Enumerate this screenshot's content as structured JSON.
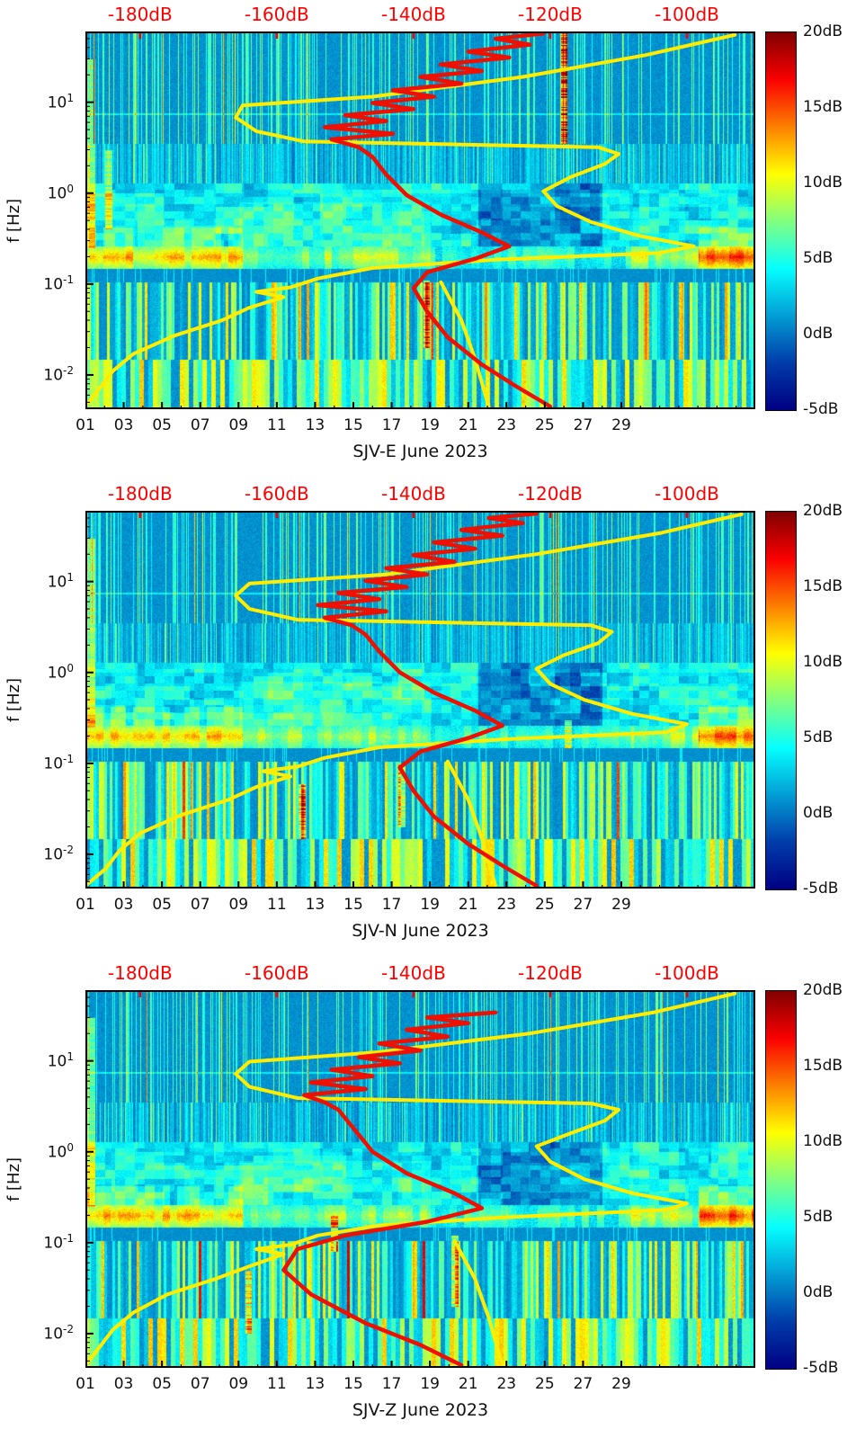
{
  "colors": {
    "top_axis_red": "#ff0000",
    "yellow_curve": "#ffec00",
    "red_curve": "#ee1000",
    "frame": "#000000",
    "background": "#ffffff"
  },
  "axes": {
    "y_label": "f [Hz]",
    "db_min": -188,
    "db_max": -90,
    "f_min": 0.0042,
    "f_max": 60,
    "day_min": 1,
    "day_max": 36,
    "top_tick_values": [
      -180,
      -160,
      -140,
      -120,
      -100
    ],
    "top_tick_labels": [
      "-180dB",
      "-160dB",
      "-140dB",
      "-120dB",
      "-100dB"
    ],
    "day_tick_values": [
      1,
      3,
      5,
      7,
      9,
      11,
      13,
      15,
      17,
      19,
      21,
      23,
      25,
      27,
      29
    ],
    "day_tick_labels": [
      "01",
      "03",
      "05",
      "07",
      "09",
      "11",
      "13",
      "15",
      "17",
      "19",
      "21",
      "23",
      "25",
      "27",
      "29"
    ],
    "y_tick_exponents": [
      1,
      0,
      -1,
      -2
    ],
    "colorbar": {
      "min": -5,
      "max": 20,
      "tick_values": [
        20,
        15,
        10,
        5,
        0,
        -5
      ],
      "tick_labels": [
        "20dB",
        "15dB",
        "10dB",
        "5dB",
        "0dB",
        "-5dB"
      ]
    }
  },
  "chart_data": [
    {
      "type": "heatmap",
      "station": "SJV-E",
      "xlabel": "SJV-E June 2023",
      "ylabel": "f [Hz]",
      "value_unit": "dB",
      "seed": 3,
      "hot_columns": [
        {
          "day": 26.0,
          "fmin": 3.5,
          "fmax": 60,
          "add": 13
        },
        {
          "day": 18.8,
          "fmin": 0.02,
          "fmax": 0.11,
          "add": 8
        },
        {
          "day": 2.2,
          "fmin": 0.4,
          "fmax": 3,
          "add": 5
        }
      ],
      "yellow_curve": [
        [
          -188,
          0.0045
        ],
        [
          -186,
          0.007
        ],
        [
          -184,
          0.011
        ],
        [
          -181,
          0.017
        ],
        [
          -175,
          0.027
        ],
        [
          -168,
          0.04
        ],
        [
          -164,
          0.055
        ],
        [
          -159,
          0.072
        ],
        [
          -163,
          0.082
        ],
        [
          -158,
          0.092
        ],
        [
          -154,
          0.115
        ],
        [
          -146,
          0.15
        ],
        [
          -128,
          0.185
        ],
        [
          -104,
          0.22
        ],
        [
          -99,
          0.26
        ],
        [
          -107,
          0.34
        ],
        [
          -114,
          0.48
        ],
        [
          -119,
          0.72
        ],
        [
          -121,
          1.05
        ],
        [
          -117,
          1.5
        ],
        [
          -112,
          2.1
        ],
        [
          -110,
          2.7
        ],
        [
          -113,
          3.2
        ],
        [
          -156,
          3.7
        ],
        [
          -163,
          4.8
        ],
        [
          -166,
          6.8
        ],
        [
          -165,
          9.2
        ],
        [
          -146,
          11.5
        ],
        [
          -124,
          19
        ],
        [
          -106,
          33
        ],
        [
          -93,
          55
        ]
      ],
      "yellow_curve_aux": [
        [
          -136,
          0.105
        ],
        [
          -133,
          0.04
        ],
        [
          -131,
          0.015
        ],
        [
          -129,
          0.0045
        ]
      ],
      "red_curve": [
        [
          -120,
          0.0045
        ],
        [
          -125,
          0.0075
        ],
        [
          -130,
          0.013
        ],
        [
          -135,
          0.026
        ],
        [
          -138,
          0.05
        ],
        [
          -140,
          0.09
        ],
        [
          -138,
          0.135
        ],
        [
          -131,
          0.19
        ],
        [
          -126,
          0.26
        ],
        [
          -130,
          0.37
        ],
        [
          -136,
          0.58
        ],
        [
          -141,
          0.95
        ],
        [
          -144,
          1.6
        ],
        [
          -146,
          2.5
        ],
        [
          -148,
          3.2
        ],
        [
          -152,
          3.9
        ],
        [
          -143,
          4.5
        ],
        [
          -153,
          5.3
        ],
        [
          -144,
          6.2
        ],
        [
          -150,
          7.2
        ],
        [
          -140,
          8.4
        ],
        [
          -146,
          9.8
        ],
        [
          -137,
          11.5
        ],
        [
          -143,
          13.5
        ],
        [
          -133,
          16
        ],
        [
          -139,
          19
        ],
        [
          -130,
          22
        ],
        [
          -136,
          26
        ],
        [
          -126,
          31
        ],
        [
          -132,
          36
        ],
        [
          -123,
          43
        ],
        [
          -128,
          50
        ],
        [
          -121,
          57
        ]
      ]
    },
    {
      "type": "heatmap",
      "station": "SJV-N",
      "xlabel": "SJV-N June 2023",
      "ylabel": "f [Hz]",
      "value_unit": "dB",
      "seed": 7,
      "hot_columns": [
        {
          "day": 12.3,
          "fmin": 0.015,
          "fmax": 0.06,
          "add": 9
        },
        {
          "day": 26.2,
          "fmin": 0.15,
          "fmax": 0.3,
          "add": 6
        },
        {
          "day": 17.5,
          "fmin": 0.02,
          "fmax": 0.1,
          "add": 7
        }
      ],
      "yellow_curve": [
        [
          -188,
          0.0045
        ],
        [
          -185,
          0.007
        ],
        [
          -183,
          0.011
        ],
        [
          -180,
          0.017
        ],
        [
          -174,
          0.027
        ],
        [
          -167,
          0.04
        ],
        [
          -163,
          0.055
        ],
        [
          -158,
          0.072
        ],
        [
          -162,
          0.082
        ],
        [
          -157,
          0.092
        ],
        [
          -153,
          0.115
        ],
        [
          -145,
          0.15
        ],
        [
          -126,
          0.185
        ],
        [
          -103,
          0.22
        ],
        [
          -100,
          0.27
        ],
        [
          -108,
          0.35
        ],
        [
          -115,
          0.5
        ],
        [
          -120,
          0.75
        ],
        [
          -122,
          1.1
        ],
        [
          -118,
          1.55
        ],
        [
          -113,
          2.1
        ],
        [
          -111,
          2.8
        ],
        [
          -114,
          3.3
        ],
        [
          -157,
          3.8
        ],
        [
          -164,
          5.0
        ],
        [
          -166,
          7.0
        ],
        [
          -164,
          9.5
        ],
        [
          -144,
          12
        ],
        [
          -122,
          20
        ],
        [
          -104,
          34
        ],
        [
          -92,
          55
        ]
      ],
      "yellow_curve_aux": [
        [
          -135,
          0.105
        ],
        [
          -132,
          0.04
        ],
        [
          -130,
          0.015
        ],
        [
          -128,
          0.0045
        ]
      ],
      "red_curve": [
        [
          -122,
          0.0045
        ],
        [
          -127,
          0.0075
        ],
        [
          -132,
          0.013
        ],
        [
          -137,
          0.026
        ],
        [
          -140,
          0.05
        ],
        [
          -142,
          0.09
        ],
        [
          -139,
          0.135
        ],
        [
          -132,
          0.19
        ],
        [
          -127,
          0.26
        ],
        [
          -131,
          0.38
        ],
        [
          -137,
          0.6
        ],
        [
          -142,
          1.0
        ],
        [
          -145,
          1.7
        ],
        [
          -147,
          2.6
        ],
        [
          -149,
          3.3
        ],
        [
          -153,
          4.0
        ],
        [
          -144,
          4.7
        ],
        [
          -154,
          5.5
        ],
        [
          -145,
          6.4
        ],
        [
          -151,
          7.5
        ],
        [
          -141,
          8.7
        ],
        [
          -147,
          10.2
        ],
        [
          -138,
          12
        ],
        [
          -144,
          14
        ],
        [
          -134,
          16.5
        ],
        [
          -140,
          19.5
        ],
        [
          -131,
          23
        ],
        [
          -137,
          27
        ],
        [
          -127,
          32
        ],
        [
          -133,
          37
        ],
        [
          -124,
          44
        ],
        [
          -129,
          50
        ],
        [
          -122,
          56
        ]
      ]
    },
    {
      "type": "heatmap",
      "station": "SJV-Z",
      "xlabel": "SJV-Z June 2023",
      "ylabel": "f [Hz]",
      "value_unit": "dB",
      "seed": 13,
      "hot_columns": [
        {
          "day": 9.5,
          "fmin": 0.01,
          "fmax": 0.05,
          "add": 8
        },
        {
          "day": 14.0,
          "fmin": 0.08,
          "fmax": 0.2,
          "add": 7
        },
        {
          "day": 20.3,
          "fmin": 0.02,
          "fmax": 0.12,
          "add": 7
        }
      ],
      "yellow_curve": [
        [
          -188,
          0.0045
        ],
        [
          -186,
          0.007
        ],
        [
          -184,
          0.011
        ],
        [
          -181,
          0.017
        ],
        [
          -176,
          0.027
        ],
        [
          -169,
          0.04
        ],
        [
          -164,
          0.055
        ],
        [
          -159,
          0.075
        ],
        [
          -163,
          0.085
        ],
        [
          -158,
          0.095
        ],
        [
          -154,
          0.12
        ],
        [
          -145,
          0.155
        ],
        [
          -127,
          0.19
        ],
        [
          -103,
          0.23
        ],
        [
          -100,
          0.27
        ],
        [
          -108,
          0.35
        ],
        [
          -115,
          0.5
        ],
        [
          -120,
          0.78
        ],
        [
          -122,
          1.15
        ],
        [
          -117,
          1.6
        ],
        [
          -112,
          2.2
        ],
        [
          -110,
          2.9
        ],
        [
          -114,
          3.4
        ],
        [
          -157,
          3.9
        ],
        [
          -164,
          5.2
        ],
        [
          -166,
          7.2
        ],
        [
          -164,
          9.8
        ],
        [
          -145,
          12.5
        ],
        [
          -123,
          20
        ],
        [
          -105,
          34
        ],
        [
          -93,
          55
        ]
      ],
      "yellow_curve_aux": [
        [
          -134,
          0.105
        ],
        [
          -131,
          0.04
        ],
        [
          -129,
          0.015
        ],
        [
          -127,
          0.0045
        ]
      ],
      "red_curve": [
        [
          -133,
          0.0045
        ],
        [
          -139,
          0.0075
        ],
        [
          -147,
          0.013
        ],
        [
          -155,
          0.027
        ],
        [
          -159,
          0.05
        ],
        [
          -157,
          0.085
        ],
        [
          -150,
          0.12
        ],
        [
          -138,
          0.17
        ],
        [
          -130,
          0.24
        ],
        [
          -134,
          0.35
        ],
        [
          -141,
          0.58
        ],
        [
          -146,
          1.0
        ],
        [
          -149,
          1.9
        ],
        [
          -151,
          2.9
        ],
        [
          -153,
          3.5
        ],
        [
          -156,
          4.2
        ],
        [
          -147,
          4.9
        ],
        [
          -155,
          5.8
        ],
        [
          -146,
          6.8
        ],
        [
          -152,
          8.0
        ],
        [
          -142,
          9.4
        ],
        [
          -148,
          11
        ],
        [
          -139,
          13
        ],
        [
          -145,
          15.5
        ],
        [
          -135,
          18.5
        ],
        [
          -141,
          22
        ],
        [
          -132,
          26
        ],
        [
          -138,
          30
        ],
        [
          -128,
          34
        ]
      ]
    }
  ]
}
